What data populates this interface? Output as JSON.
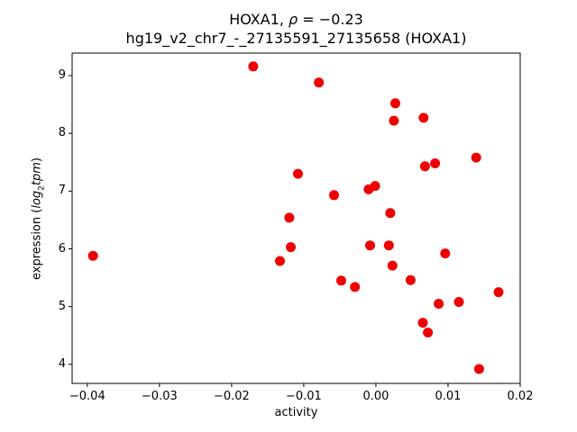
{
  "title": {
    "gene": "HOXA1",
    "sep": ", ",
    "rho_symbol": "ρ",
    "rho_rest": " = −0.23",
    "line2": "hg19_v2_chr7_-_27135591_27135658 (HOXA1)"
  },
  "axes": {
    "xlabel": "activity",
    "ylabel_prefix": "expression (",
    "ylabel_log": "log",
    "ylabel_sub": "2",
    "ylabel_tpm": "tpm",
    "ylabel_suffix": ")"
  },
  "chart_data": {
    "type": "scatter",
    "title": "HOXA1, ρ = −0.23",
    "subtitle": "hg19_v2_chr7_-_27135591_27135658 (HOXA1)",
    "rho": -0.23,
    "xlabel": "activity",
    "ylabel": "expression (log2 tpm)",
    "marker_color": "#ee0000",
    "marker_radius": 5.5,
    "grid": false,
    "legend": "none",
    "xlim": [
      -0.0421,
      0.02
    ],
    "ylim": [
      3.67,
      9.39
    ],
    "xticks": [
      -0.04,
      -0.03,
      -0.02,
      -0.01,
      0.0,
      0.01,
      0.02
    ],
    "xtick_labels": [
      "−0.04",
      "−0.03",
      "−0.02",
      "−0.01",
      "0.00",
      "0.01",
      "0.02"
    ],
    "yticks": [
      4,
      5,
      6,
      7,
      8,
      9
    ],
    "ytick_labels": [
      "4",
      "5",
      "6",
      "7",
      "8",
      "9"
    ],
    "points": [
      [
        -0.0392,
        5.88
      ],
      [
        -0.017,
        9.16
      ],
      [
        -0.0079,
        8.88
      ],
      [
        -0.0108,
        7.3
      ],
      [
        -0.0058,
        6.93
      ],
      [
        -0.012,
        6.54
      ],
      [
        -0.0118,
        6.03
      ],
      [
        -0.0133,
        5.79
      ],
      [
        -0.0008,
        6.06
      ],
      [
        -0.0048,
        5.45
      ],
      [
        -0.0029,
        5.34
      ],
      [
        0.0027,
        8.52
      ],
      [
        0.0025,
        8.22
      ],
      [
        0.0066,
        8.27
      ],
      [
        0.0139,
        7.58
      ],
      [
        0.0068,
        7.43
      ],
      [
        0.0082,
        7.48
      ],
      [
        -0.001,
        7.03
      ],
      [
        -0.0001,
        7.09
      ],
      [
        0.002,
        6.62
      ],
      [
        0.0018,
        6.06
      ],
      [
        0.0096,
        5.92
      ],
      [
        0.0023,
        5.71
      ],
      [
        0.0048,
        5.46
      ],
      [
        0.017,
        5.25
      ],
      [
        0.0087,
        5.05
      ],
      [
        0.0115,
        5.08
      ],
      [
        0.0065,
        4.72
      ],
      [
        0.0072,
        4.55
      ],
      [
        0.0143,
        3.92
      ]
    ]
  }
}
